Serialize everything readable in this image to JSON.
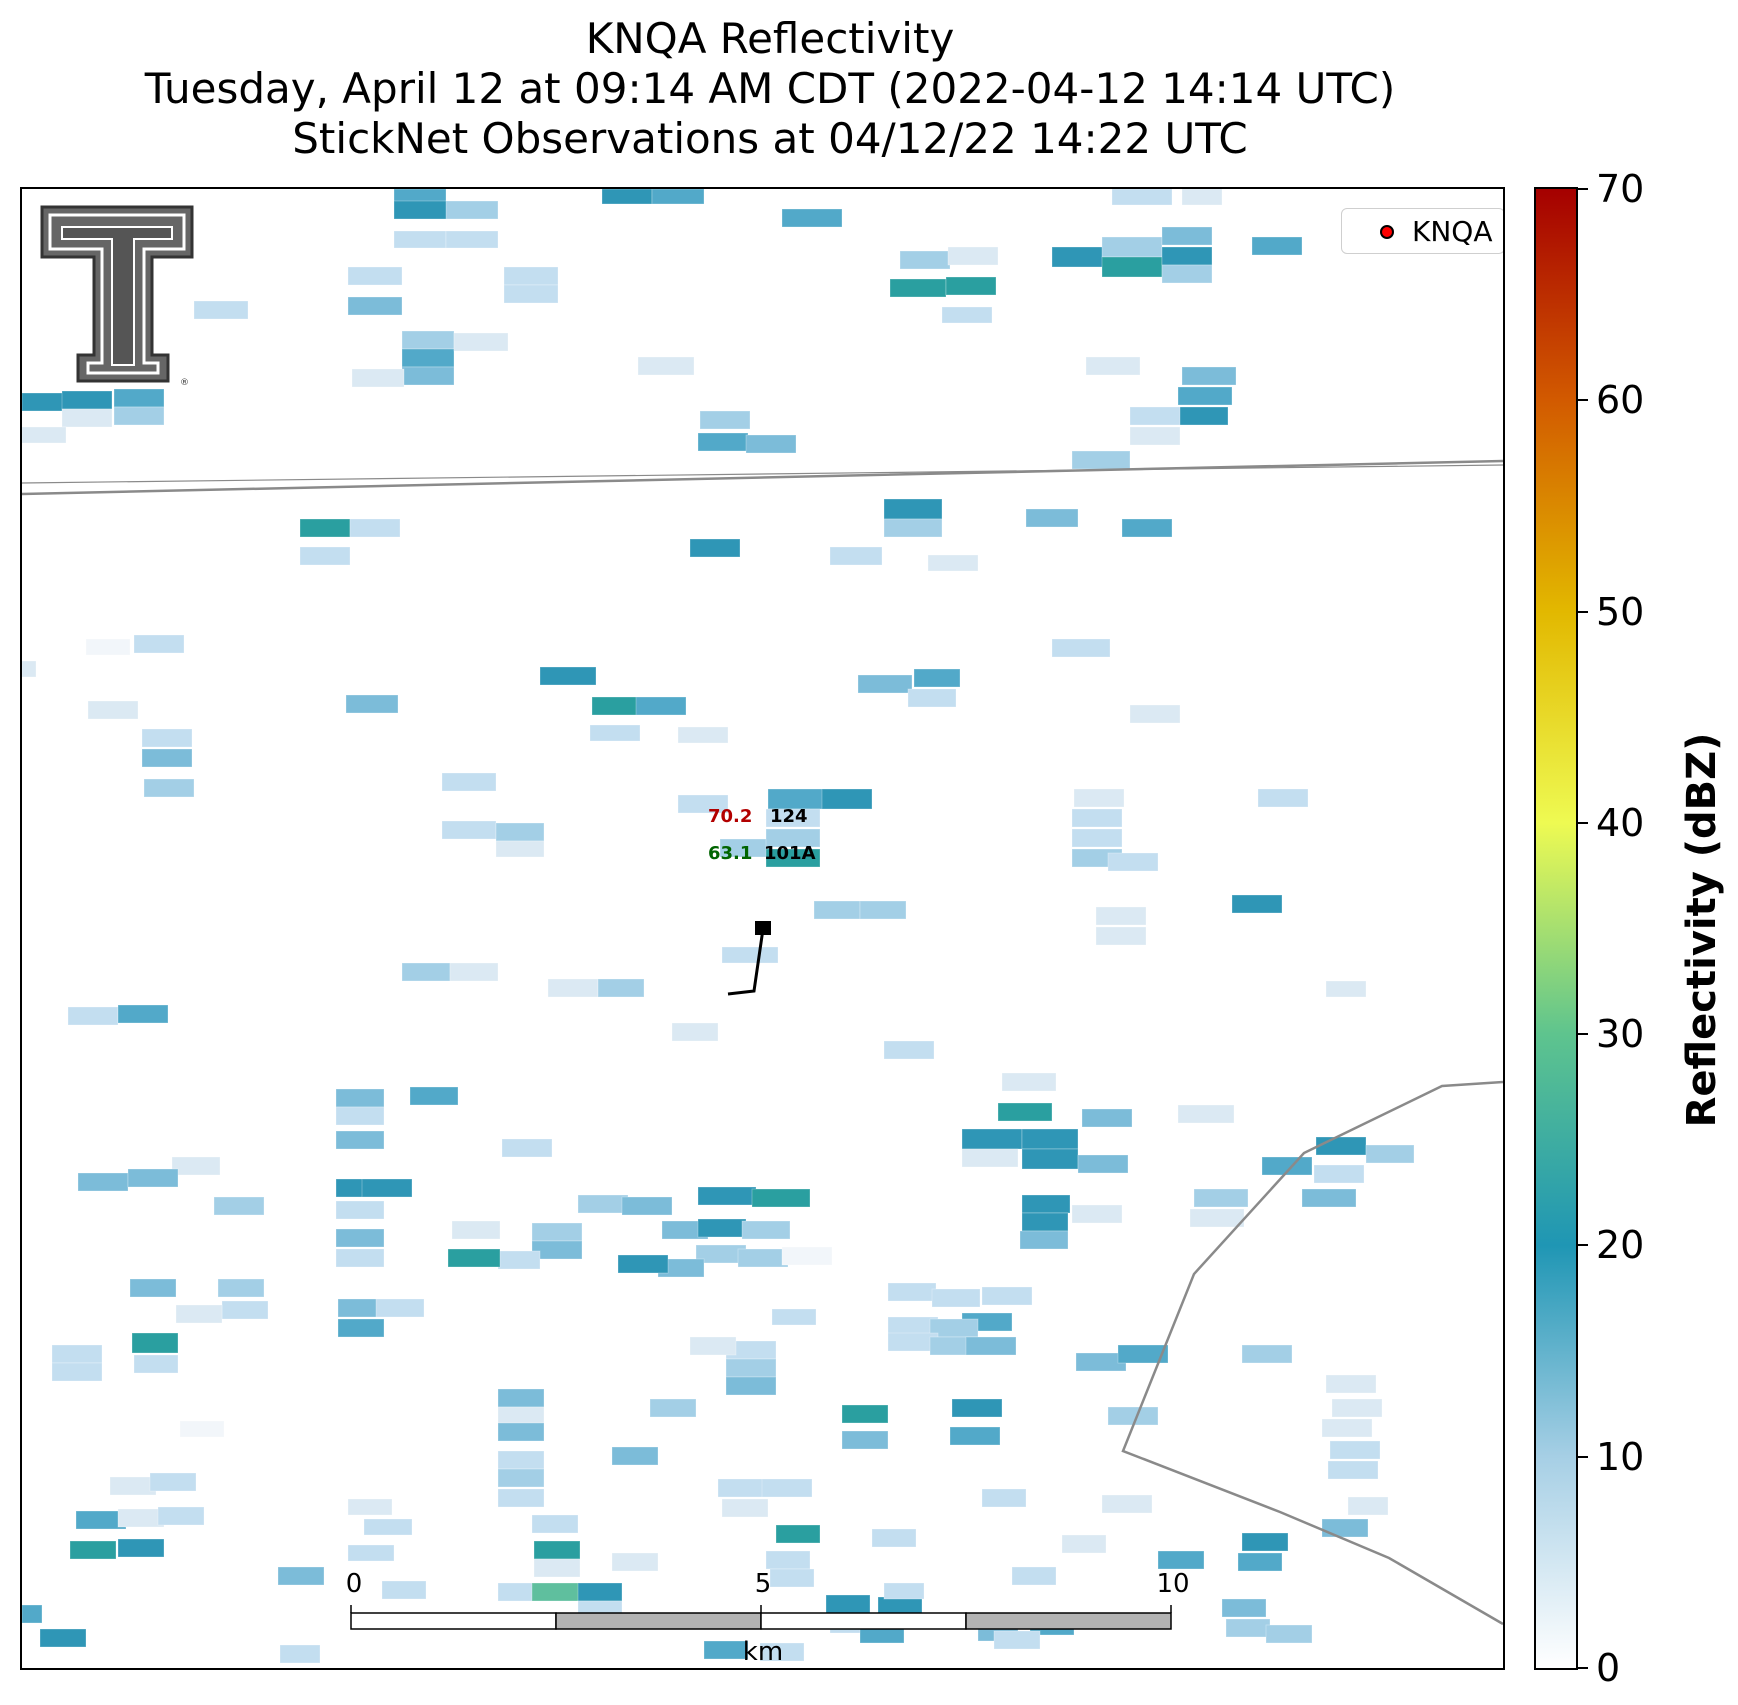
{
  "title": {
    "line1": "KNQA Reflectivity",
    "line2": "Tuesday, April 12 at 09:14 AM CDT (2022-04-12 14:14 UTC)",
    "line3": "StickNet Observations at 04/12/22 14:22 UTC"
  },
  "legend": {
    "label": "KNQA",
    "marker_color": "#ff0000"
  },
  "station": {
    "temperature": "70.2",
    "temperature_color": "#b20000",
    "dewpoint": "63.1",
    "dewpoint_color": "#006400",
    "pressure": "124",
    "station_id": "101A"
  },
  "scale_bar": {
    "ticks": [
      "0",
      "5",
      "10"
    ],
    "unit": "km"
  },
  "colorbar": {
    "label": "Reflectivity (dBZ)",
    "min": 0,
    "max": 70,
    "ticks": [
      "0",
      "10",
      "20",
      "30",
      "40",
      "50",
      "60",
      "70"
    ],
    "colors": [
      "#ffffff",
      "#a6cfe5",
      "#1f96b4",
      "#5ec48e",
      "#eefa52",
      "#e2b800",
      "#d25a00",
      "#a50000"
    ]
  },
  "logo": {
    "name": "texas-tech-double-t-logo",
    "text": "TT",
    "mark": "®"
  }
}
